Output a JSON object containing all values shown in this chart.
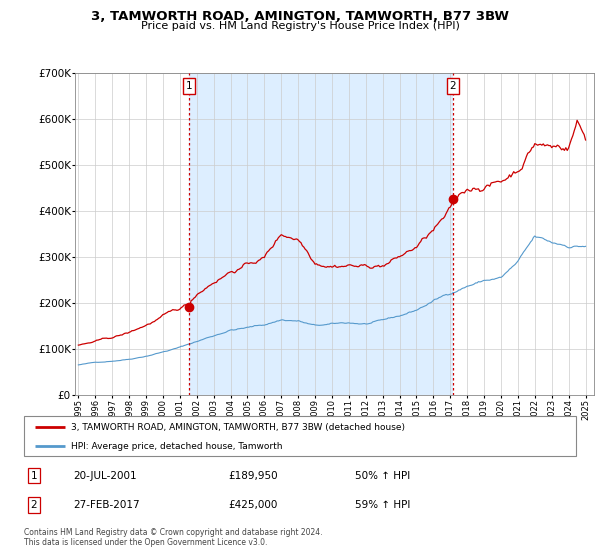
{
  "title": "3, TAMWORTH ROAD, AMINGTON, TAMWORTH, B77 3BW",
  "subtitle": "Price paid vs. HM Land Registry's House Price Index (HPI)",
  "property_label": "3, TAMWORTH ROAD, AMINGTON, TAMWORTH, B77 3BW (detached house)",
  "hpi_label": "HPI: Average price, detached house, Tamworth",
  "footnote": "Contains HM Land Registry data © Crown copyright and database right 2024.\nThis data is licensed under the Open Government Licence v3.0.",
  "transactions": [
    {
      "num": 1,
      "date": "20-JUL-2001",
      "price": "£189,950",
      "hpi": "50% ↑ HPI",
      "year": 2001.54
    },
    {
      "num": 2,
      "date": "27-FEB-2017",
      "price": "£425,000",
      "hpi": "59% ↑ HPI",
      "year": 2017.16
    }
  ],
  "sale1_year": 2001.54,
  "sale1_price": 189950,
  "sale2_year": 2017.16,
  "sale2_price": 425000,
  "property_color": "#cc0000",
  "hpi_color": "#5599cc",
  "vline_color": "#cc0000",
  "shade_color": "#ddeeff",
  "ylim": [
    0,
    700000
  ],
  "xlim": [
    1994.8,
    2025.5
  ],
  "yticks": [
    0,
    100000,
    200000,
    300000,
    400000,
    500000,
    600000,
    700000
  ],
  "xticks": [
    1995,
    1996,
    1997,
    1998,
    1999,
    2000,
    2001,
    2002,
    2003,
    2004,
    2005,
    2006,
    2007,
    2008,
    2009,
    2010,
    2011,
    2012,
    2013,
    2014,
    2015,
    2016,
    2017,
    2018,
    2019,
    2020,
    2021,
    2022,
    2023,
    2024,
    2025
  ]
}
